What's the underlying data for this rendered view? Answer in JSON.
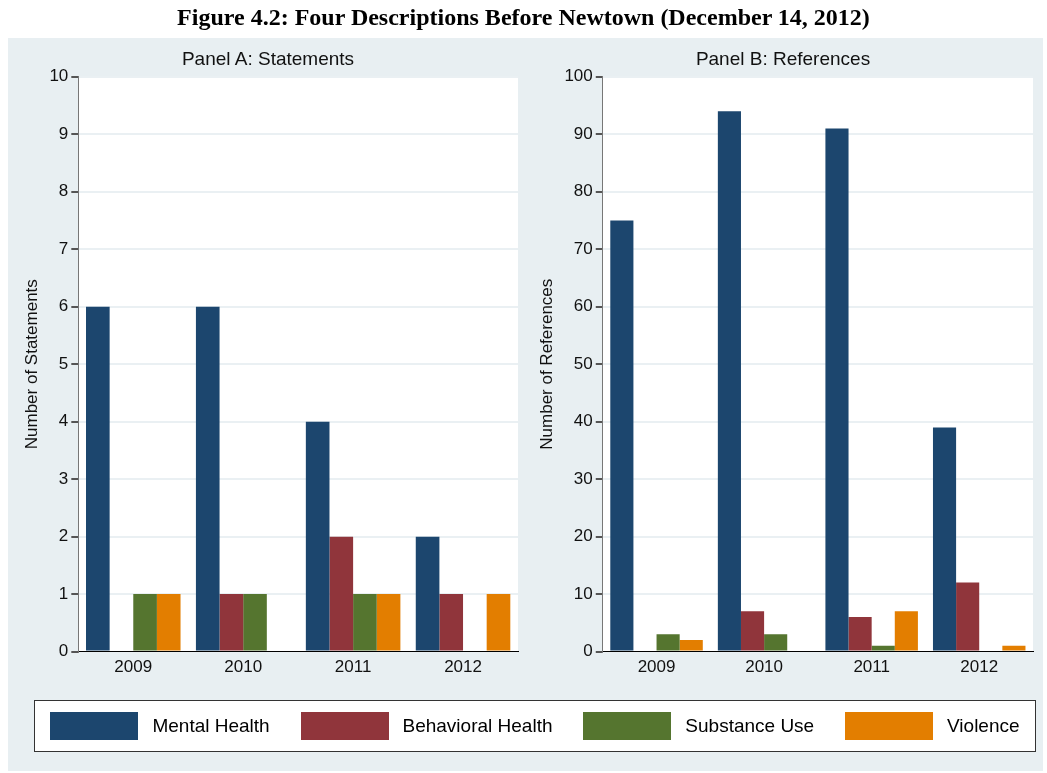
{
  "chart_data": [
    {
      "type": "bar",
      "annotations": [
        "Figure 4.2: Four Descriptions Before Newtown (December 14, 2012)"
      ],
      "title": "Panel A: Statements",
      "ylabel": "Number of Statements",
      "categories": [
        "2009",
        "2010",
        "2011",
        "2012"
      ],
      "series": [
        {
          "name": "Mental Health",
          "color": "#1c466e",
          "values": [
            6,
            6,
            4,
            2
          ]
        },
        {
          "name": "Behavioral Health",
          "color": "#90353b",
          "values": [
            0,
            1,
            2,
            1
          ]
        },
        {
          "name": "Substance Use",
          "color": "#55752f",
          "values": [
            1,
            1,
            1,
            0
          ]
        },
        {
          "name": "Violence",
          "color": "#e37e00",
          "values": [
            1,
            0,
            1,
            1
          ]
        }
      ],
      "ylim": [
        0,
        10
      ],
      "yticks": [
        0,
        1,
        2,
        3,
        4,
        5,
        6,
        7,
        8,
        9,
        10
      ],
      "grid": "y",
      "legend": "bottom"
    },
    {
      "type": "bar",
      "title": "Panel B: References",
      "ylabel": "Number of References",
      "categories": [
        "2009",
        "2010",
        "2011",
        "2012"
      ],
      "series": [
        {
          "color": "#1c466e",
          "values": [
            75,
            94,
            91,
            39
          ]
        },
        {
          "color": "#90353b",
          "values": [
            0,
            7,
            6,
            12
          ]
        },
        {
          "color": "#55752f",
          "values": [
            3,
            3,
            1,
            0
          ]
        },
        {
          "color": "#e37e00",
          "values": [
            2,
            0,
            7,
            1
          ]
        }
      ],
      "ylim": [
        0,
        100
      ],
      "yticks": [
        0,
        10,
        20,
        30,
        40,
        50,
        60,
        70,
        80,
        90,
        100
      ],
      "grid": "y"
    }
  ]
}
